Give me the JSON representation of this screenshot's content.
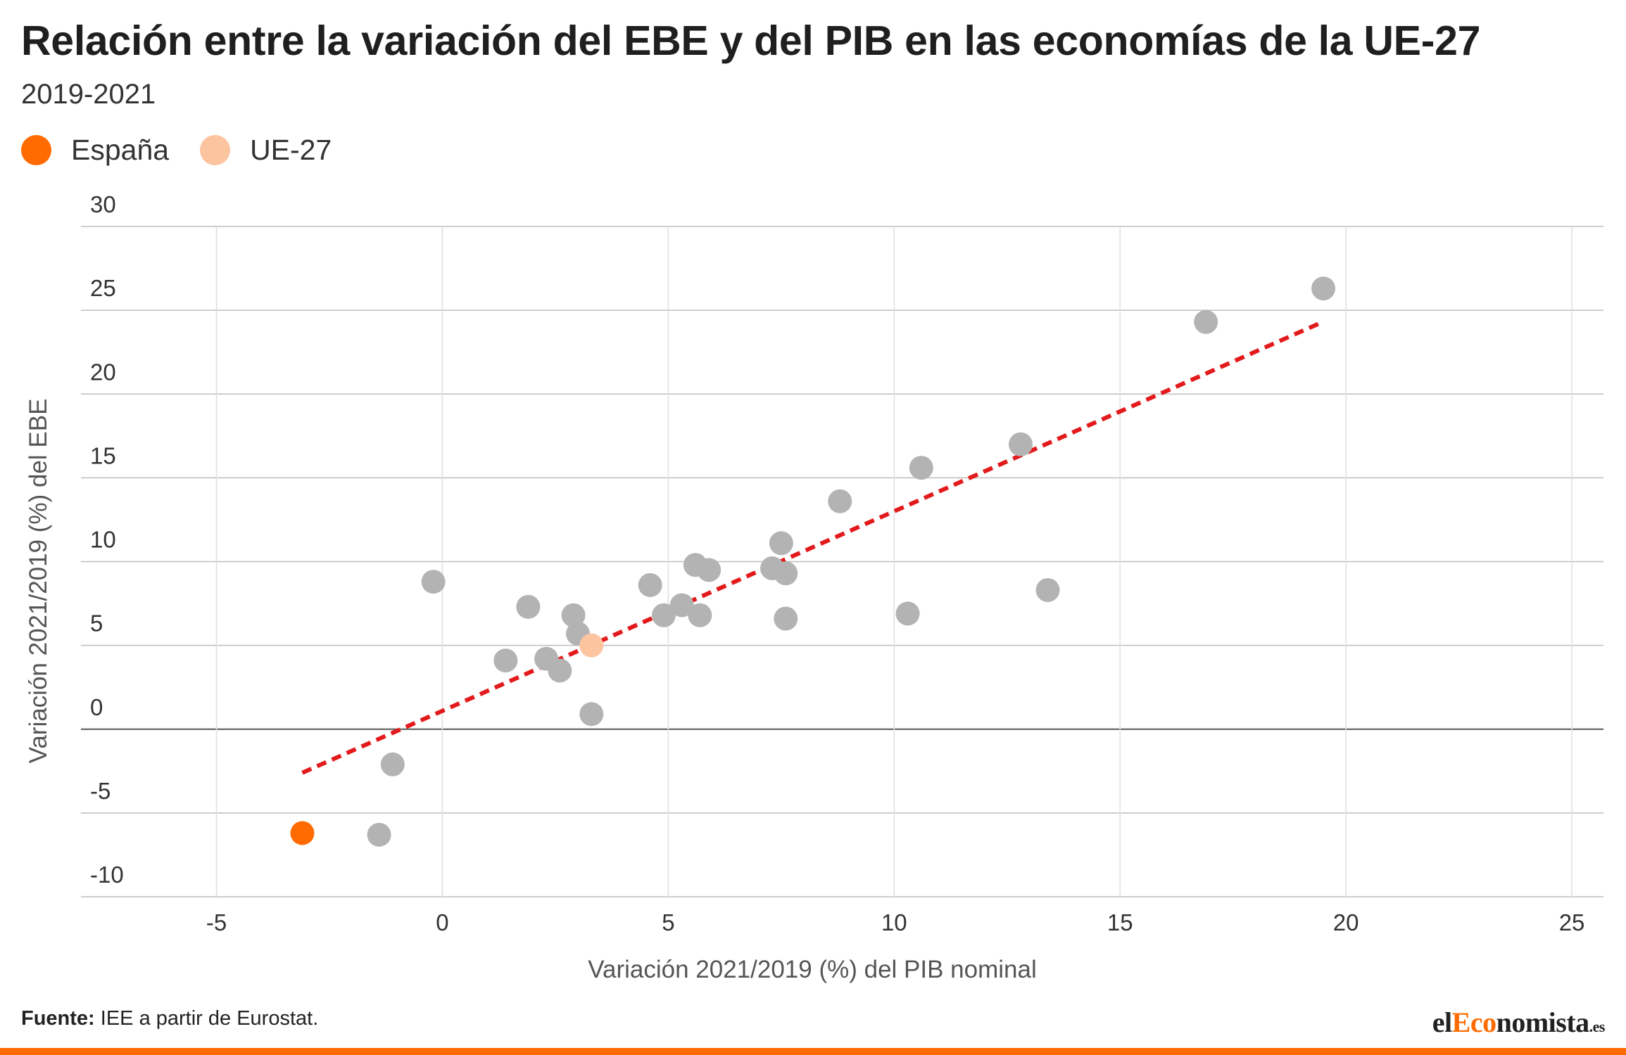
{
  "header": {
    "title": "Relación entre la variación del EBE y del PIB en las economías de la UE-27",
    "subtitle": "2019-2021"
  },
  "legend": [
    {
      "label": "España",
      "color": "#ff6b00"
    },
    {
      "label": "UE-27",
      "color": "#fdc4a0"
    }
  ],
  "footer": {
    "source_label": "Fuente:",
    "source_text": "IEE a partir de Eurostat.",
    "brand_prefix": "el",
    "brand_accent": "Eco",
    "brand_suffix": "nomista",
    "brand_tld": ".es"
  },
  "chart_data": {
    "type": "scatter",
    "xlabel": "Variación 2021/2019 (%) del PIB nominal",
    "ylabel": "Variación 2021/2019 (%) del EBE",
    "xlim": [
      -8,
      25.7
    ],
    "ylim": [
      -10,
      30
    ],
    "xticks": [
      -5,
      0,
      5,
      10,
      15,
      20,
      25
    ],
    "yticks": [
      30,
      25,
      20,
      15,
      10,
      5,
      0,
      -5,
      -10
    ],
    "grid": true,
    "legend_position": "top-left",
    "colors": {
      "other": "#b3b3b3",
      "spain": "#ff6b00",
      "eu27": "#fdc4a0",
      "trend": "#e31a1c"
    },
    "series": [
      {
        "name": "España",
        "color": "#ff6b00",
        "points": [
          {
            "x": -3.1,
            "y": -6.2
          }
        ]
      },
      {
        "name": "UE-27",
        "color": "#fdc4a0",
        "points": [
          {
            "x": 3.3,
            "y": 5.0
          }
        ]
      },
      {
        "color": "#b3b3b3",
        "points": [
          {
            "x": -1.4,
            "y": -6.3
          },
          {
            "x": -1.1,
            "y": -2.1
          },
          {
            "x": -0.2,
            "y": 8.8
          },
          {
            "x": 1.4,
            "y": 4.1
          },
          {
            "x": 1.9,
            "y": 7.3
          },
          {
            "x": 2.3,
            "y": 4.2
          },
          {
            "x": 2.6,
            "y": 3.5
          },
          {
            "x": 2.9,
            "y": 6.8
          },
          {
            "x": 3.0,
            "y": 5.7
          },
          {
            "x": 3.3,
            "y": 0.9
          },
          {
            "x": 4.6,
            "y": 8.6
          },
          {
            "x": 4.9,
            "y": 6.8
          },
          {
            "x": 5.3,
            "y": 7.4
          },
          {
            "x": 5.6,
            "y": 9.8
          },
          {
            "x": 5.7,
            "y": 6.8
          },
          {
            "x": 5.9,
            "y": 9.5
          },
          {
            "x": 7.3,
            "y": 9.6
          },
          {
            "x": 7.5,
            "y": 11.1
          },
          {
            "x": 7.6,
            "y": 9.3
          },
          {
            "x": 7.6,
            "y": 6.6
          },
          {
            "x": 8.8,
            "y": 13.6
          },
          {
            "x": 10.3,
            "y": 6.9
          },
          {
            "x": 10.6,
            "y": 15.6
          },
          {
            "x": 12.8,
            "y": 17.0
          },
          {
            "x": 13.4,
            "y": 8.3
          },
          {
            "x": 16.9,
            "y": 24.3
          },
          {
            "x": 19.5,
            "y": 26.3
          }
        ]
      }
    ],
    "trendline": {
      "x": [
        -3.1,
        19.4
      ],
      "y": [
        -2.6,
        24.2
      ]
    }
  }
}
